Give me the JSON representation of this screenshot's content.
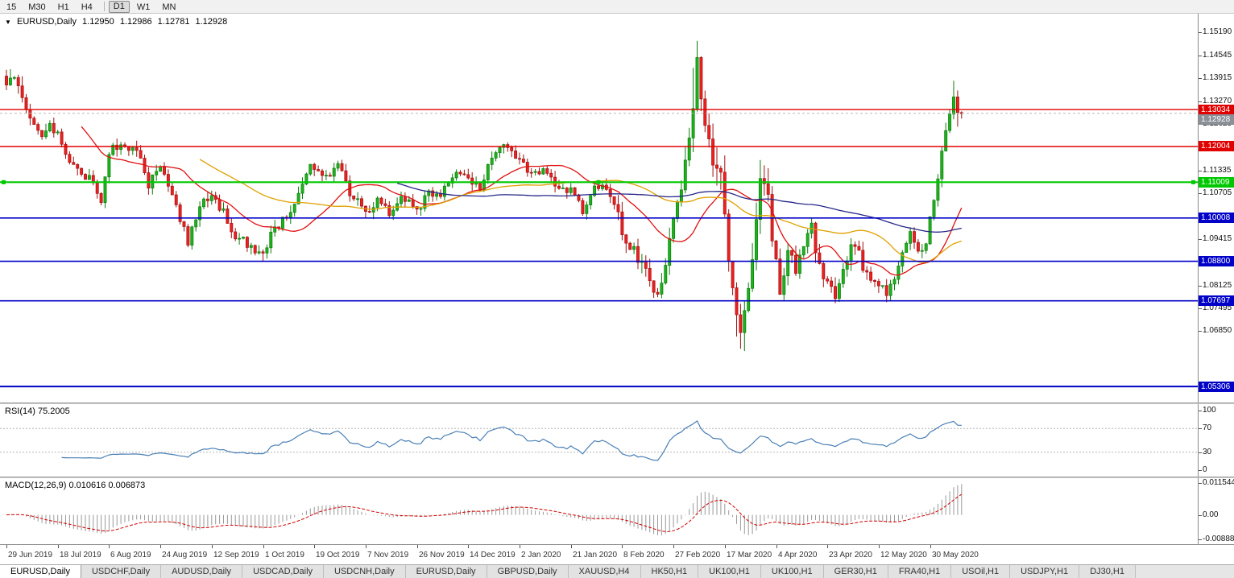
{
  "toolbar": {
    "timeframes": [
      {
        "label": "15",
        "active": false
      },
      {
        "label": "M30",
        "active": false
      },
      {
        "label": "H1",
        "active": false
      },
      {
        "label": "H4",
        "active": false
      },
      {
        "label": "D1",
        "active": true
      },
      {
        "label": "W1",
        "active": false
      },
      {
        "label": "MN",
        "active": false
      }
    ]
  },
  "chart_header": {
    "dropdown_arrow": "▼",
    "symbol": "EURUSD,Daily",
    "open": "1.12950",
    "high": "1.12986",
    "low": "1.12781",
    "close": "1.12928"
  },
  "rsi_panel": {
    "label": "RSI(14) 75.2005"
  },
  "macd_panel": {
    "label": "MACD(12,26,9) 0.010616 0.006873"
  },
  "tabs": [
    {
      "label": "EURUSD,Daily",
      "active": true
    },
    {
      "label": "USDCHF,Daily",
      "active": false
    },
    {
      "label": "AUDUSD,Daily",
      "active": false
    },
    {
      "label": "USDCAD,Daily",
      "active": false
    },
    {
      "label": "USDCNH,Daily",
      "active": false
    },
    {
      "label": "EURUSD,Daily",
      "active": false
    },
    {
      "label": "GBPUSD,Daily",
      "active": false
    },
    {
      "label": "XAUUSD,H4",
      "active": false
    },
    {
      "label": "HK50,H1",
      "active": false
    },
    {
      "label": "UK100,H1",
      "active": false
    },
    {
      "label": "UK100,H1",
      "active": false
    },
    {
      "label": "GER30,H1",
      "active": false
    },
    {
      "label": "FRA40,H1",
      "active": false
    },
    {
      "label": "USOil,H1",
      "active": false
    },
    {
      "label": "USDJPY,H1",
      "active": false
    },
    {
      "label": "DJ30,H1",
      "active": false
    }
  ],
  "chart_data": {
    "type": "candlestick",
    "title": "EURUSD,Daily",
    "candle_count": 243,
    "y_range": [
      1.0486,
      1.1571
    ],
    "y_ticks": [
      "1.15190",
      "1.14545",
      "1.13915",
      "1.13270",
      "1.12625",
      "1.11335",
      "1.10705",
      "1.09415",
      "1.08125",
      "1.07495",
      "1.06850"
    ],
    "x_ticks": [
      {
        "label": "29 Jun 2019",
        "i": 0
      },
      {
        "label": "18 Jul 2019",
        "i": 13
      },
      {
        "label": "6 Aug 2019",
        "i": 26
      },
      {
        "label": "24 Aug 2019",
        "i": 39
      },
      {
        "label": "12 Sep 2019",
        "i": 52
      },
      {
        "label": "1 Oct 2019",
        "i": 65
      },
      {
        "label": "19 Oct 2019",
        "i": 78
      },
      {
        "label": "7 Nov 2019",
        "i": 91
      },
      {
        "label": "26 Nov 2019",
        "i": 104
      },
      {
        "label": "14 Dec 2019",
        "i": 117
      },
      {
        "label": "2 Jan 2020",
        "i": 130
      },
      {
        "label": "21 Jan 2020",
        "i": 143
      },
      {
        "label": "8 Feb 2020",
        "i": 156
      },
      {
        "label": "27 Feb 2020",
        "i": 169
      },
      {
        "label": "17 Mar 2020",
        "i": 182
      },
      {
        "label": "4 Apr 2020",
        "i": 195
      },
      {
        "label": "23 Apr 2020",
        "i": 208
      },
      {
        "label": "12 May 2020",
        "i": 221
      },
      {
        "label": "30 May 2020",
        "i": 234
      }
    ],
    "levels": [
      {
        "text": "1.13034",
        "color": "#e00000",
        "w": 1.4,
        "handles": false
      },
      {
        "text": "1.12004",
        "color": "#e00000",
        "w": 1.4,
        "handles": false
      },
      {
        "text": "1.11009",
        "color": "#00c800",
        "w": 2.2,
        "handles": true
      },
      {
        "text": "1.10008",
        "color": "#0000c8",
        "w": 1.6,
        "handles": false
      },
      {
        "text": "1.08800",
        "color": "#0000c8",
        "w": 1.6,
        "handles": false
      },
      {
        "text": "1.07697",
        "color": "#0000c8",
        "w": 1.6,
        "handles": false
      },
      {
        "text": "1.05306",
        "color": "#0000c8",
        "w": 2.0,
        "handles": false
      }
    ],
    "current_price": {
      "text": "1.12928",
      "value": 1.12928,
      "label_bg": "#8a8f98",
      "label_fg": "#ffffff"
    },
    "last_candle": {
      "open": 1.1295,
      "high": 1.12986,
      "low": 1.12781,
      "close": 1.12928
    },
    "price_path": [
      [
        0,
        1.1385
      ],
      [
        2,
        1.14
      ],
      [
        4,
        1.133
      ],
      [
        6,
        1.127
      ],
      [
        9,
        1.1225
      ],
      [
        11,
        1.127
      ],
      [
        13,
        1.123
      ],
      [
        16,
        1.1165
      ],
      [
        19,
        1.1125
      ],
      [
        22,
        1.111
      ],
      [
        24,
        1.1035
      ],
      [
        26,
        1.118
      ],
      [
        28,
        1.1205
      ],
      [
        31,
        1.1195
      ],
      [
        34,
        1.117
      ],
      [
        36,
        1.1095
      ],
      [
        39,
        1.114
      ],
      [
        41,
        1.1085
      ],
      [
        44,
        1.1
      ],
      [
        46,
        1.093
      ],
      [
        49,
        1.1035
      ],
      [
        52,
        1.107
      ],
      [
        55,
        1.1015
      ],
      [
        58,
        1.0955
      ],
      [
        61,
        1.093
      ],
      [
        65,
        1.089
      ],
      [
        67,
        1.0955
      ],
      [
        70,
        1.0995
      ],
      [
        73,
        1.104
      ],
      [
        77,
        1.1145
      ],
      [
        80,
        1.111
      ],
      [
        84,
        1.115
      ],
      [
        87,
        1.1075
      ],
      [
        91,
        1.102
      ],
      [
        94,
        1.105
      ],
      [
        97,
        1.101
      ],
      [
        100,
        1.107
      ],
      [
        104,
        1.102
      ],
      [
        107,
        1.108
      ],
      [
        110,
        1.106
      ],
      [
        113,
        1.1125
      ],
      [
        117,
        1.1115
      ],
      [
        120,
        1.109
      ],
      [
        123,
        1.1165
      ],
      [
        126,
        1.121
      ],
      [
        130,
        1.116
      ],
      [
        133,
        1.112
      ],
      [
        136,
        1.113
      ],
      [
        139,
        1.109
      ],
      [
        143,
        1.108
      ],
      [
        146,
        1.102
      ],
      [
        149,
        1.1085
      ],
      [
        152,
        1.109
      ],
      [
        154,
        1.105
      ],
      [
        156,
        1.096
      ],
      [
        159,
        1.091
      ],
      [
        162,
        1.0845
      ],
      [
        164,
        1.079
      ],
      [
        166,
        1.0815
      ],
      [
        169,
        1.099
      ],
      [
        172,
        1.1135
      ],
      [
        175,
        1.144
      ],
      [
        177,
        1.1285
      ],
      [
        179,
        1.118
      ],
      [
        181,
        1.111
      ],
      [
        183,
        1.0905
      ],
      [
        186,
        1.068
      ],
      [
        188,
        1.0775
      ],
      [
        190,
        1.103
      ],
      [
        192,
        1.113
      ],
      [
        194,
        1.095
      ],
      [
        196,
        1.0805
      ],
      [
        198,
        1.091
      ],
      [
        200,
        1.0865
      ],
      [
        202,
        1.0935
      ],
      [
        204,
        1.0975
      ],
      [
        206,
        1.087
      ],
      [
        208,
        1.0825
      ],
      [
        210,
        1.0775
      ],
      [
        212,
        1.0855
      ],
      [
        214,
        1.0945
      ],
      [
        216,
        1.0895
      ],
      [
        218,
        1.0845
      ],
      [
        221,
        1.0815
      ],
      [
        223,
        1.0795
      ],
      [
        225,
        1.0825
      ],
      [
        227,
        1.0905
      ],
      [
        229,
        1.0955
      ],
      [
        231,
        1.0905
      ],
      [
        233,
        1.0935
      ],
      [
        234,
        1.101
      ],
      [
        236,
        1.1125
      ],
      [
        238,
        1.123
      ],
      [
        240,
        1.134
      ],
      [
        241,
        1.13
      ],
      [
        242,
        1.1293
      ]
    ],
    "volatility_windows": [
      [
        0,
        5,
        1.5
      ],
      [
        154,
        171,
        1.6
      ],
      [
        172,
        193,
        2.6
      ],
      [
        194,
        218,
        1.5
      ],
      [
        235,
        242,
        1.4
      ]
    ],
    "spikes": [
      {
        "i": 175,
        "h": 1.1495
      },
      {
        "i": 174,
        "h": 1.142
      },
      {
        "i": 186,
        "l": 1.0636
      },
      {
        "i": 185,
        "l": 1.067
      },
      {
        "i": 240,
        "h": 1.1384
      },
      {
        "i": 164,
        "l": 1.0778
      },
      {
        "i": 223,
        "l": 1.0766
      },
      {
        "i": 65,
        "l": 1.0879
      }
    ],
    "moving_averages": [
      {
        "period": 20,
        "color": "#e01010"
      },
      {
        "period": 50,
        "color": "#e0a000"
      },
      {
        "period": 100,
        "color": "#262688"
      }
    ],
    "rsi": {
      "period": 14,
      "last_value": "75.2005",
      "color": "#4a7fb5",
      "ticks": [
        "100",
        "70",
        "30",
        "0"
      ],
      "guide_levels": [
        70,
        30
      ],
      "range": [
        0,
        100
      ]
    },
    "macd": {
      "fast": 12,
      "slow": 26,
      "signal": 9,
      "main_value": "0.010616",
      "signal_value": "0.006873",
      "ticks": [
        "0.0115444",
        "0.00",
        "-0.0088858"
      ],
      "histogram_color": "#9a9a9a",
      "signal_color": "#d00000"
    }
  }
}
